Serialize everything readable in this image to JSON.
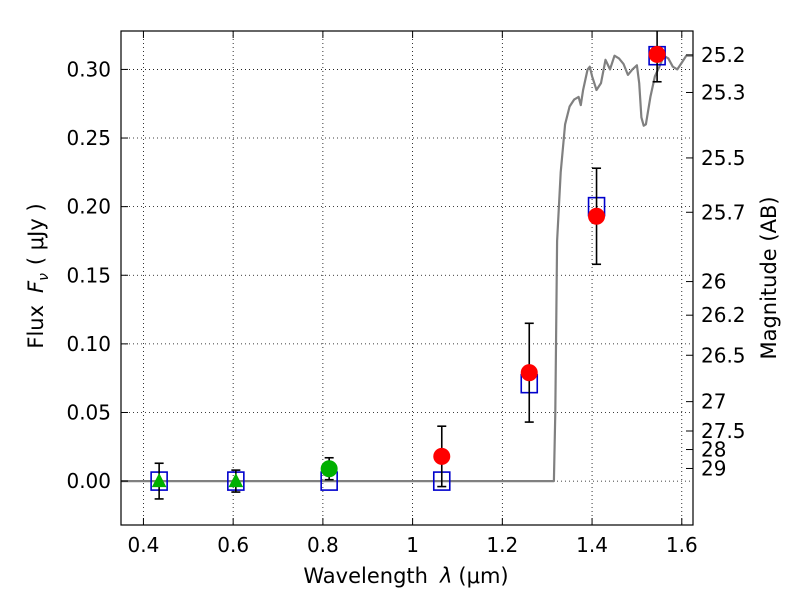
{
  "chart_data": {
    "type": "scatter",
    "title": "",
    "xlabel_prefix": "Wavelength",
    "xlabel_symbol": "λ",
    "xlabel_unit": "(μm)",
    "ylabel_prefix": "Flux",
    "ylabel_symbol": "F",
    "ylabel_subscript": "ν",
    "ylabel_unit": "( μJy )",
    "y2label": "Magnitude (AB)",
    "xlim": [
      0.35,
      1.625
    ],
    "ylim": [
      -0.032,
      0.328
    ],
    "grid": true,
    "x_ticks": [
      {
        "value": 0.4,
        "label": "0.4"
      },
      {
        "value": 0.6,
        "label": "0.6"
      },
      {
        "value": 0.8,
        "label": "0.8"
      },
      {
        "value": 1.0,
        "label": "1"
      },
      {
        "value": 1.2,
        "label": "1.2"
      },
      {
        "value": 1.4,
        "label": "1.4"
      },
      {
        "value": 1.6,
        "label": "1.6"
      }
    ],
    "y_ticks": [
      {
        "value": 0.0,
        "label": "0.00"
      },
      {
        "value": 0.05,
        "label": "0.05"
      },
      {
        "value": 0.1,
        "label": "0.10"
      },
      {
        "value": 0.15,
        "label": "0.15"
      },
      {
        "value": 0.2,
        "label": "0.20"
      },
      {
        "value": 0.25,
        "label": "0.25"
      },
      {
        "value": 0.3,
        "label": "0.30"
      }
    ],
    "y2_ticks": [
      {
        "flux": 0.3106,
        "label": "25.2"
      },
      {
        "flux": 0.2832,
        "label": "25.3"
      },
      {
        "flux": 0.2355,
        "label": "25.5"
      },
      {
        "flux": 0.1959,
        "label": "25.7"
      },
      {
        "flux": 0.1454,
        "label": "26"
      },
      {
        "flux": 0.1209,
        "label": "26.2"
      },
      {
        "flux": 0.0917,
        "label": "26.5"
      },
      {
        "flux": 0.0579,
        "label": "27"
      },
      {
        "flux": 0.0365,
        "label": "27.5"
      },
      {
        "flux": 0.023,
        "label": "28"
      },
      {
        "flux": 0.0092,
        "label": "29"
      }
    ],
    "series": [
      {
        "marker": "line",
        "color": "#808080",
        "x": [
          0.35,
          1.315,
          1.318,
          1.322,
          1.33,
          1.34,
          1.35,
          1.36,
          1.37,
          1.375,
          1.38,
          1.39,
          1.395,
          1.4,
          1.41,
          1.42,
          1.43,
          1.44,
          1.45,
          1.46,
          1.47,
          1.48,
          1.49,
          1.5,
          1.505,
          1.51,
          1.515,
          1.52,
          1.53,
          1.54,
          1.55,
          1.56,
          1.57,
          1.58,
          1.59,
          1.6,
          1.61,
          1.625
        ],
        "values": [
          0.0,
          0.0,
          0.05,
          0.175,
          0.225,
          0.26,
          0.273,
          0.278,
          0.28,
          0.274,
          0.285,
          0.3,
          0.302,
          0.295,
          0.285,
          0.29,
          0.307,
          0.3,
          0.31,
          0.308,
          0.304,
          0.296,
          0.3,
          0.303,
          0.29,
          0.265,
          0.259,
          0.26,
          0.28,
          0.295,
          0.302,
          0.31,
          0.308,
          0.302,
          0.3,
          0.305,
          0.31,
          0.31
        ]
      },
      {
        "marker": "open-square",
        "color": "#0000cc",
        "x": [
          0.435,
          0.606,
          0.814,
          1.065,
          1.26,
          1.41,
          1.545
        ],
        "values": [
          0.0,
          0.0,
          0.0,
          0.0,
          0.071,
          0.2,
          0.31
        ]
      },
      {
        "marker": "circle",
        "color": "#ff0000",
        "x": [
          1.065,
          1.26,
          1.41,
          1.545
        ],
        "values": [
          0.018,
          0.079,
          0.193,
          0.311
        ],
        "errors": [
          0.022,
          0.036,
          0.035,
          0.02
        ]
      },
      {
        "marker": "circle",
        "color": "#00b000",
        "x": [
          0.814
        ],
        "values": [
          0.009
        ],
        "errors": [
          0.008
        ]
      },
      {
        "marker": "triangle",
        "color": "#00b000",
        "x": [
          0.435,
          0.606
        ],
        "values": [
          0.0,
          0.0
        ],
        "errors": [
          0.013,
          0.008
        ]
      }
    ]
  }
}
